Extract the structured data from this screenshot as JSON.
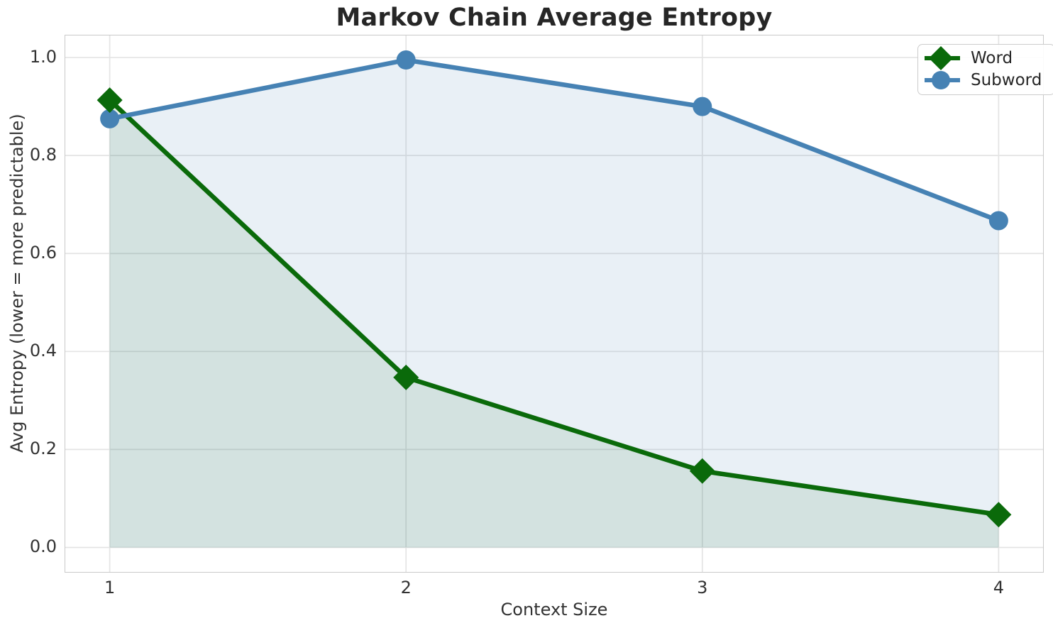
{
  "chart_data": {
    "type": "line",
    "title": "Markov Chain Average Entropy",
    "xlabel": "Context Size",
    "ylabel": "Avg Entropy (lower = more predictable)",
    "x": [
      1,
      2,
      3,
      4
    ],
    "series": [
      {
        "name": "Word",
        "values": [
          0.913,
          0.347,
          0.156,
          0.067
        ],
        "color": "#0a6a0a",
        "marker": "diamond",
        "area_fill": true,
        "fill_alpha": 0.1
      },
      {
        "name": "Subword",
        "values": [
          0.875,
          0.995,
          0.9,
          0.667
        ],
        "color": "#4682b4",
        "marker": "circle",
        "area_fill": true,
        "fill_alpha": 0.12
      }
    ],
    "fill_baseline": 0,
    "xlim": [
      0.85,
      4.15
    ],
    "ylim": [
      -0.05,
      1.045
    ],
    "xticks": {
      "values": [
        1,
        2,
        3,
        4
      ],
      "labels": [
        "1",
        "2",
        "3",
        "4"
      ]
    },
    "yticks": {
      "values": [
        0.0,
        0.2,
        0.4,
        0.6,
        0.8,
        1.0
      ],
      "labels": [
        "0.0",
        "0.2",
        "0.4",
        "0.6",
        "0.8",
        "1.0"
      ]
    },
    "grid": true,
    "legend_position": "upper right"
  },
  "style_colors": {
    "grid": "#e4e4e4",
    "spine": "#c9c9c9",
    "title_text": "#262626",
    "tick_text": "#333333",
    "background": "#ffffff"
  }
}
